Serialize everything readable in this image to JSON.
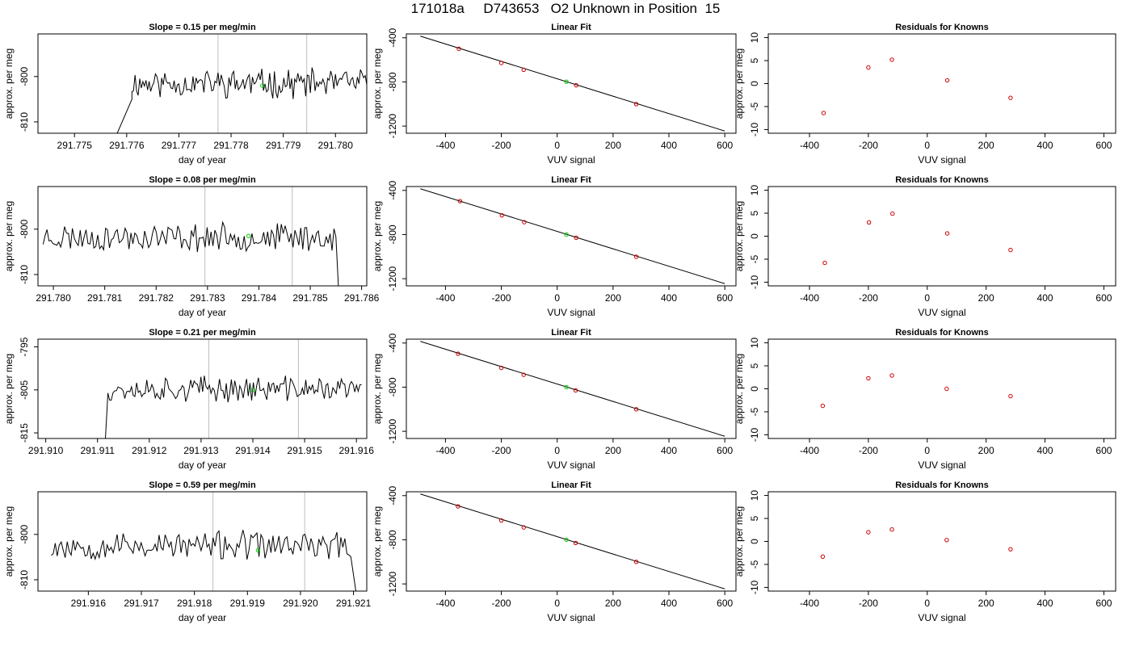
{
  "figure": {
    "title": "171018a     D743653   O2 Unknown in Position  15"
  },
  "chart_data": [
    {
      "type": "line",
      "panel": "timeseries",
      "row": 1,
      "title": "Slope =  0.15  per meg/min",
      "xlabel": "day of year",
      "ylabel": "approx. per meg",
      "xlim": [
        291.7743,
        291.7806
      ],
      "ylim": [
        -812.5,
        -790.6
      ],
      "xticks": [
        "291.775",
        "291.776",
        "291.777",
        "291.778",
        "291.779",
        "291.780"
      ],
      "yticks": [
        "-810",
        "-800"
      ],
      "start": [
        291.7758,
        -813
      ],
      "ramp_end": [
        291.7761,
        -805
      ],
      "trace_start": 291.7761,
      "trace_end": 291.7806,
      "trace_mean": -801.5,
      "trace_amp": 2.6,
      "trace_seed": 11,
      "vlines": [
        291.77775,
        291.77945
      ],
      "highlight_point": [
        291.7786,
        -802
      ],
      "colors": {
        "trace": "#000000",
        "highlight": "#00cc00",
        "vline": "#bebebe"
      }
    },
    {
      "type": "scatter",
      "panel": "linear_fit",
      "row": 1,
      "title": "Linear Fit",
      "xlabel": "VUV signal",
      "ylabel": "approx. per meg",
      "xlim": [
        -540,
        640
      ],
      "ylim": [
        -1265,
        -365
      ],
      "xticks": [
        -400,
        -200,
        0,
        200,
        400,
        600
      ],
      "yticks": [
        -400,
        -800,
        -1200
      ],
      "knowns": [
        {
          "x": -352,
          "y": -500
        },
        {
          "x": -200,
          "y": -628
        },
        {
          "x": -120,
          "y": -690
        },
        {
          "x": 68,
          "y": -830
        },
        {
          "x": 283,
          "y": -1001
        }
      ],
      "unknown": {
        "x": 33,
        "y": -798
      },
      "fit_line": [
        [
          -490,
          -385
        ],
        [
          600,
          -1245
        ]
      ],
      "colors": {
        "knowns": "#cc0000",
        "unknown": "#00cc00",
        "line": "#000000"
      }
    },
    {
      "type": "scatter",
      "panel": "residuals",
      "row": 1,
      "title": "Residuals for Knowns",
      "xlabel": "VUV signal",
      "ylabel": "",
      "xlim": [
        -540,
        640
      ],
      "ylim": [
        -10.8,
        10.8
      ],
      "xticks": [
        -400,
        -200,
        0,
        200,
        400,
        600
      ],
      "yticks": [
        -10,
        -5,
        0,
        5,
        10
      ],
      "points": [
        {
          "x": -352,
          "y": -6.4
        },
        {
          "x": -200,
          "y": 3.5
        },
        {
          "x": -120,
          "y": 5.2
        },
        {
          "x": 68,
          "y": 0.7
        },
        {
          "x": 283,
          "y": -3.1
        }
      ],
      "colors": {
        "points": "#cc0000"
      }
    },
    {
      "type": "line",
      "panel": "timeseries",
      "row": 2,
      "title": "Slope =  0.08  per meg/min",
      "xlabel": "day of year",
      "ylabel": "approx. per meg",
      "xlim": [
        291.7797,
        291.7861
      ],
      "ylim": [
        -812.5,
        -790.6
      ],
      "xticks": [
        "291.780",
        "291.781",
        "291.782",
        "291.783",
        "291.784",
        "291.785",
        "291.786"
      ],
      "yticks": [
        "-810",
        "-800"
      ],
      "trace_start": 291.7798,
      "trace_end": 291.7855,
      "trace_mean": -801.8,
      "trace_amp": 2.5,
      "trace_seed": 23,
      "end": [
        291.78555,
        -813
      ],
      "vlines": [
        291.78295,
        291.78465
      ],
      "highlight_point": [
        291.7838,
        -801.5
      ],
      "colors": {
        "trace": "#000000",
        "highlight": "#00cc00",
        "vline": "#bebebe"
      }
    },
    {
      "type": "scatter",
      "panel": "linear_fit",
      "row": 2,
      "title": "Linear Fit",
      "xlabel": "VUV signal",
      "ylabel": "approx. per meg",
      "xlim": [
        -540,
        640
      ],
      "ylim": [
        -1265,
        -365
      ],
      "xticks": [
        -400,
        -200,
        0,
        200,
        400,
        600
      ],
      "yticks": [
        -400,
        -800,
        -1200
      ],
      "knowns": [
        {
          "x": -348,
          "y": -497
        },
        {
          "x": -198,
          "y": -626
        },
        {
          "x": -118,
          "y": -688
        },
        {
          "x": 68,
          "y": -829
        },
        {
          "x": 283,
          "y": -1001
        }
      ],
      "unknown": {
        "x": 33,
        "y": -800
      },
      "fit_line": [
        [
          -490,
          -385
        ],
        [
          600,
          -1245
        ]
      ],
      "colors": {
        "knowns": "#cc0000",
        "unknown": "#00cc00",
        "line": "#000000"
      }
    },
    {
      "type": "scatter",
      "panel": "residuals",
      "row": 2,
      "title": "Residuals for Knowns",
      "xlabel": "VUV signal",
      "ylabel": "",
      "xlim": [
        -540,
        640
      ],
      "ylim": [
        -10.8,
        10.8
      ],
      "xticks": [
        -400,
        -200,
        0,
        200,
        400,
        600
      ],
      "yticks": [
        -10,
        -5,
        0,
        5,
        10
      ],
      "points": [
        {
          "x": -348,
          "y": -5.8
        },
        {
          "x": -198,
          "y": 3.0
        },
        {
          "x": -118,
          "y": 4.9
        },
        {
          "x": 68,
          "y": 0.6
        },
        {
          "x": 283,
          "y": -3.0
        }
      ],
      "colors": {
        "points": "#cc0000"
      }
    },
    {
      "type": "line",
      "panel": "timeseries",
      "row": 3,
      "title": "Slope =  0.21  per meg/min",
      "xlabel": "day of year",
      "ylabel": "approx. per meg",
      "xlim": [
        291.90985,
        291.9162
      ],
      "ylim": [
        -816.3,
        -793.2
      ],
      "xticks": [
        "291.910",
        "291.911",
        "291.912",
        "291.913",
        "291.914",
        "291.915",
        "291.916"
      ],
      "yticks": [
        "-815",
        "-805",
        "-795"
      ],
      "start": [
        291.91115,
        -817
      ],
      "ramp_end": [
        291.9112,
        -806
      ],
      "trace_start": 291.9112,
      "trace_end": 291.9161,
      "trace_mean": -804.8,
      "trace_amp": 2.4,
      "trace_seed": 37,
      "vlines": [
        291.91315,
        291.91488
      ],
      "highlight_point": [
        291.914,
        -805
      ],
      "colors": {
        "trace": "#000000",
        "highlight": "#00cc00",
        "vline": "#bebebe"
      }
    },
    {
      "type": "scatter",
      "panel": "linear_fit",
      "row": 3,
      "title": "Linear Fit",
      "xlabel": "VUV signal",
      "ylabel": "approx. per meg",
      "xlim": [
        -540,
        640
      ],
      "ylim": [
        -1265,
        -365
      ],
      "xticks": [
        -400,
        -200,
        0,
        200,
        400,
        600
      ],
      "yticks": [
        -400,
        -800,
        -1200
      ],
      "knowns": [
        {
          "x": -355,
          "y": -497
        },
        {
          "x": -200,
          "y": -625
        },
        {
          "x": -120,
          "y": -688
        },
        {
          "x": 66,
          "y": -829
        },
        {
          "x": 283,
          "y": -1000
        }
      ],
      "unknown": {
        "x": 33,
        "y": -800
      },
      "fit_line": [
        [
          -490,
          -385
        ],
        [
          600,
          -1245
        ]
      ],
      "colors": {
        "knowns": "#cc0000",
        "unknown": "#00cc00",
        "line": "#000000"
      }
    },
    {
      "type": "scatter",
      "panel": "residuals",
      "row": 3,
      "title": "Residuals for Knowns",
      "xlabel": "VUV signal",
      "ylabel": "",
      "xlim": [
        -540,
        640
      ],
      "ylim": [
        -10.8,
        10.8
      ],
      "xticks": [
        -400,
        -200,
        0,
        200,
        400,
        600
      ],
      "yticks": [
        -10,
        -5,
        0,
        5,
        10
      ],
      "points": [
        {
          "x": -355,
          "y": -3.7
        },
        {
          "x": -200,
          "y": 2.3
        },
        {
          "x": -120,
          "y": 2.9
        },
        {
          "x": 66,
          "y": 0.0
        },
        {
          "x": 283,
          "y": -1.6
        }
      ],
      "colors": {
        "points": "#cc0000"
      }
    },
    {
      "type": "line",
      "panel": "timeseries",
      "row": 4,
      "title": "Slope =  0.59  per meg/min",
      "xlabel": "day of year",
      "ylabel": "approx. per meg",
      "xlim": [
        291.91505,
        291.92125
      ],
      "ylim": [
        -812.5,
        -790.6
      ],
      "xticks": [
        "291.916",
        "291.917",
        "291.918",
        "291.919",
        "291.920",
        "291.921"
      ],
      "yticks": [
        "-810",
        "-800"
      ],
      "trace_start": 291.9153,
      "trace_end": 291.92095,
      "trace_mean": -802.5,
      "trace_amp": 2.6,
      "trace_seed": 53,
      "end": [
        291.92105,
        -813
      ],
      "vlines": [
        291.91835,
        291.92008
      ],
      "highlight_point": [
        291.9192,
        -803.5
      ],
      "colors": {
        "trace": "#000000",
        "highlight": "#00cc00",
        "vline": "#bebebe"
      }
    },
    {
      "type": "scatter",
      "panel": "linear_fit",
      "row": 4,
      "title": "Linear Fit",
      "xlabel": "VUV signal",
      "ylabel": "approx. per meg",
      "xlim": [
        -540,
        640
      ],
      "ylim": [
        -1265,
        -365
      ],
      "xticks": [
        -400,
        -200,
        0,
        200,
        400,
        600
      ],
      "yticks": [
        -400,
        -800,
        -1200
      ],
      "knowns": [
        {
          "x": -355,
          "y": -497
        },
        {
          "x": -200,
          "y": -625
        },
        {
          "x": -120,
          "y": -688
        },
        {
          "x": 66,
          "y": -829
        },
        {
          "x": 283,
          "y": -1000
        }
      ],
      "unknown": {
        "x": 33,
        "y": -800
      },
      "fit_line": [
        [
          -490,
          -385
        ],
        [
          600,
          -1245
        ]
      ],
      "colors": {
        "knowns": "#cc0000",
        "unknown": "#00cc00",
        "line": "#000000"
      }
    },
    {
      "type": "scatter",
      "panel": "residuals",
      "row": 4,
      "title": "Residuals for Knowns",
      "xlabel": "VUV signal",
      "ylabel": "",
      "xlim": [
        -540,
        640
      ],
      "ylim": [
        -10.8,
        10.8
      ],
      "xticks": [
        -400,
        -200,
        0,
        200,
        400,
        600
      ],
      "yticks": [
        -10,
        -5,
        0,
        5,
        10
      ],
      "points": [
        {
          "x": -355,
          "y": -3.3
        },
        {
          "x": -200,
          "y": 2.0
        },
        {
          "x": -120,
          "y": 2.6
        },
        {
          "x": 66,
          "y": 0.3
        },
        {
          "x": 283,
          "y": -1.7
        }
      ],
      "colors": {
        "points": "#cc0000"
      }
    }
  ]
}
